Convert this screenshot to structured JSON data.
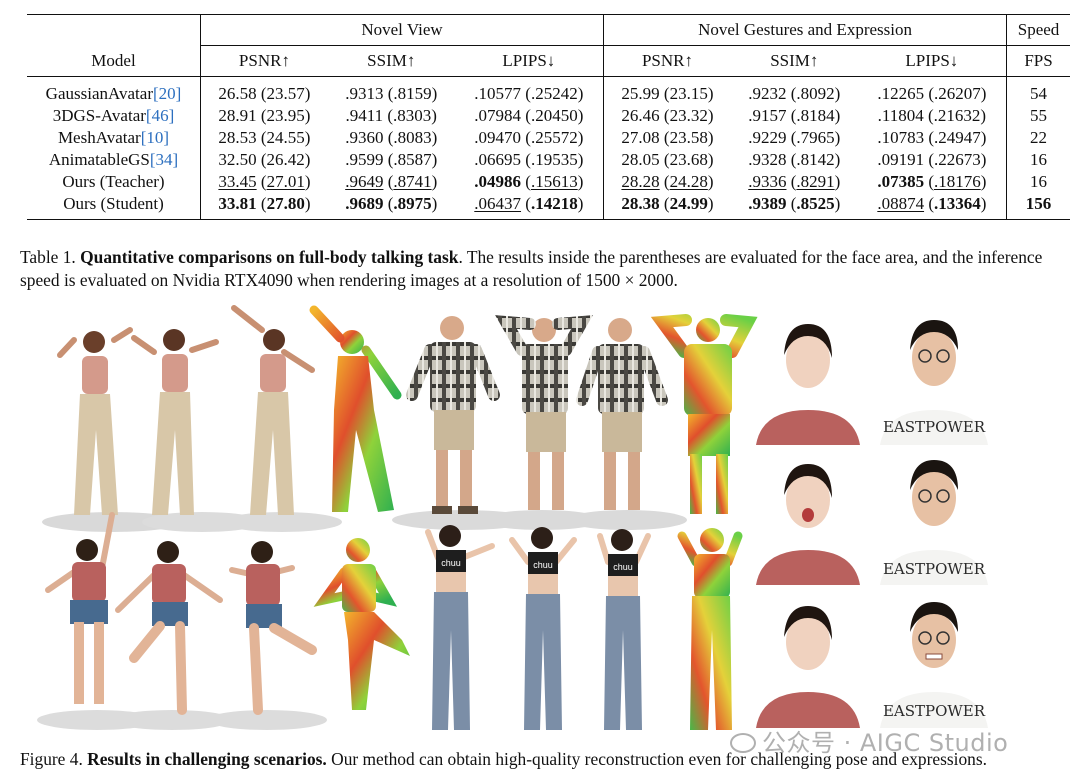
{
  "table": {
    "group_headers": [
      "Novel View",
      "Novel Gestures and Expression",
      "Speed"
    ],
    "col_headers": [
      "Model",
      "PSNR↑",
      "SSIM↑",
      "LPIPS↓",
      "PSNR↑",
      "SSIM↑",
      "LPIPS↓",
      "FPS"
    ],
    "rows": [
      {
        "model": "GaussianAvatar",
        "cite": "[20]",
        "nv_psnr": "26.58 (23.57)",
        "nv_ssim": ".9313 (.8159)",
        "nv_lpips": ".10577 (.25242)",
        "ng_psnr": "25.99 (23.15)",
        "ng_ssim": ".9232 (.8092)",
        "ng_lpips": ".12265 (.26207)",
        "fps": "54"
      },
      {
        "model": "3DGS-Avatar",
        "cite": "[46]",
        "nv_psnr": "28.91 (23.95)",
        "nv_ssim": ".9411 (.8303)",
        "nv_lpips": ".07984 (.20450)",
        "ng_psnr": "26.46 (23.32)",
        "ng_ssim": ".9157 (.8184)",
        "ng_lpips": ".11804 (.21632)",
        "fps": "55"
      },
      {
        "model": "MeshAvatar",
        "cite": "[10]",
        "nv_psnr": "28.53 (24.55)",
        "nv_ssim": ".9360 (.8083)",
        "nv_lpips": ".09470 (.25572)",
        "ng_psnr": "27.08 (23.58)",
        "ng_ssim": ".9229 (.7965)",
        "ng_lpips": ".10783 (.24947)",
        "fps": "22"
      },
      {
        "model": "AnimatableGS",
        "cite": "[34]",
        "nv_psnr": "32.50 (26.42)",
        "nv_ssim": ".9599 (.8587)",
        "nv_lpips": ".06695 (.19535)",
        "ng_psnr": "28.05 (23.68)",
        "ng_ssim": ".9328 (.8142)",
        "ng_lpips": ".09191 (.22673)",
        "fps": "16"
      }
    ],
    "teacher": {
      "model": "Ours (Teacher)",
      "nv_psnr_a": "33.45",
      "nv_psnr_b": "27.01",
      "nv_ssim_a": ".9649",
      "nv_ssim_b": ".8741",
      "nv_lpips_a": ".04986",
      "nv_lpips_b": ".15613",
      "ng_psnr_a": "28.28",
      "ng_psnr_b": "24.28",
      "ng_ssim_a": ".9336",
      "ng_ssim_b": ".8291",
      "ng_lpips_a": ".07385",
      "ng_lpips_b": ".18176",
      "fps": "16"
    },
    "student": {
      "model": "Ours (Student)",
      "nv_psnr_a": "33.81",
      "nv_psnr_b": "27.80",
      "nv_ssim_a": ".9689",
      "nv_ssim_b": ".8975",
      "nv_lpips_a": ".06437",
      "nv_lpips_b": ".14218",
      "ng_psnr_a": "28.38",
      "ng_psnr_b": "24.99",
      "ng_ssim_a": ".9389",
      "ng_ssim_b": ".8525",
      "ng_lpips_a": ".08874",
      "ng_lpips_b": ".13364",
      "fps": "156"
    }
  },
  "caption1": {
    "label": "Table 1.",
    "bold": "Quantitative comparisons on full-body talking task",
    "rest": ". The results inside the parentheses are evaluated for the face area, and the inference speed is evaluated on Nvidia RTX4090 when rendering images at a resolution of 1500 × 2000."
  },
  "caption2": {
    "label": "Figure 4.",
    "bold": "Results in challenging scenarios.",
    "rest": " Our method can obtain high-quality reconstruction even for challenging pose and expressions."
  },
  "figure": {
    "shirt_text": "EASTPOWER",
    "top_text": "chuu"
  },
  "watermark": "公众号 · AIGC Studio"
}
